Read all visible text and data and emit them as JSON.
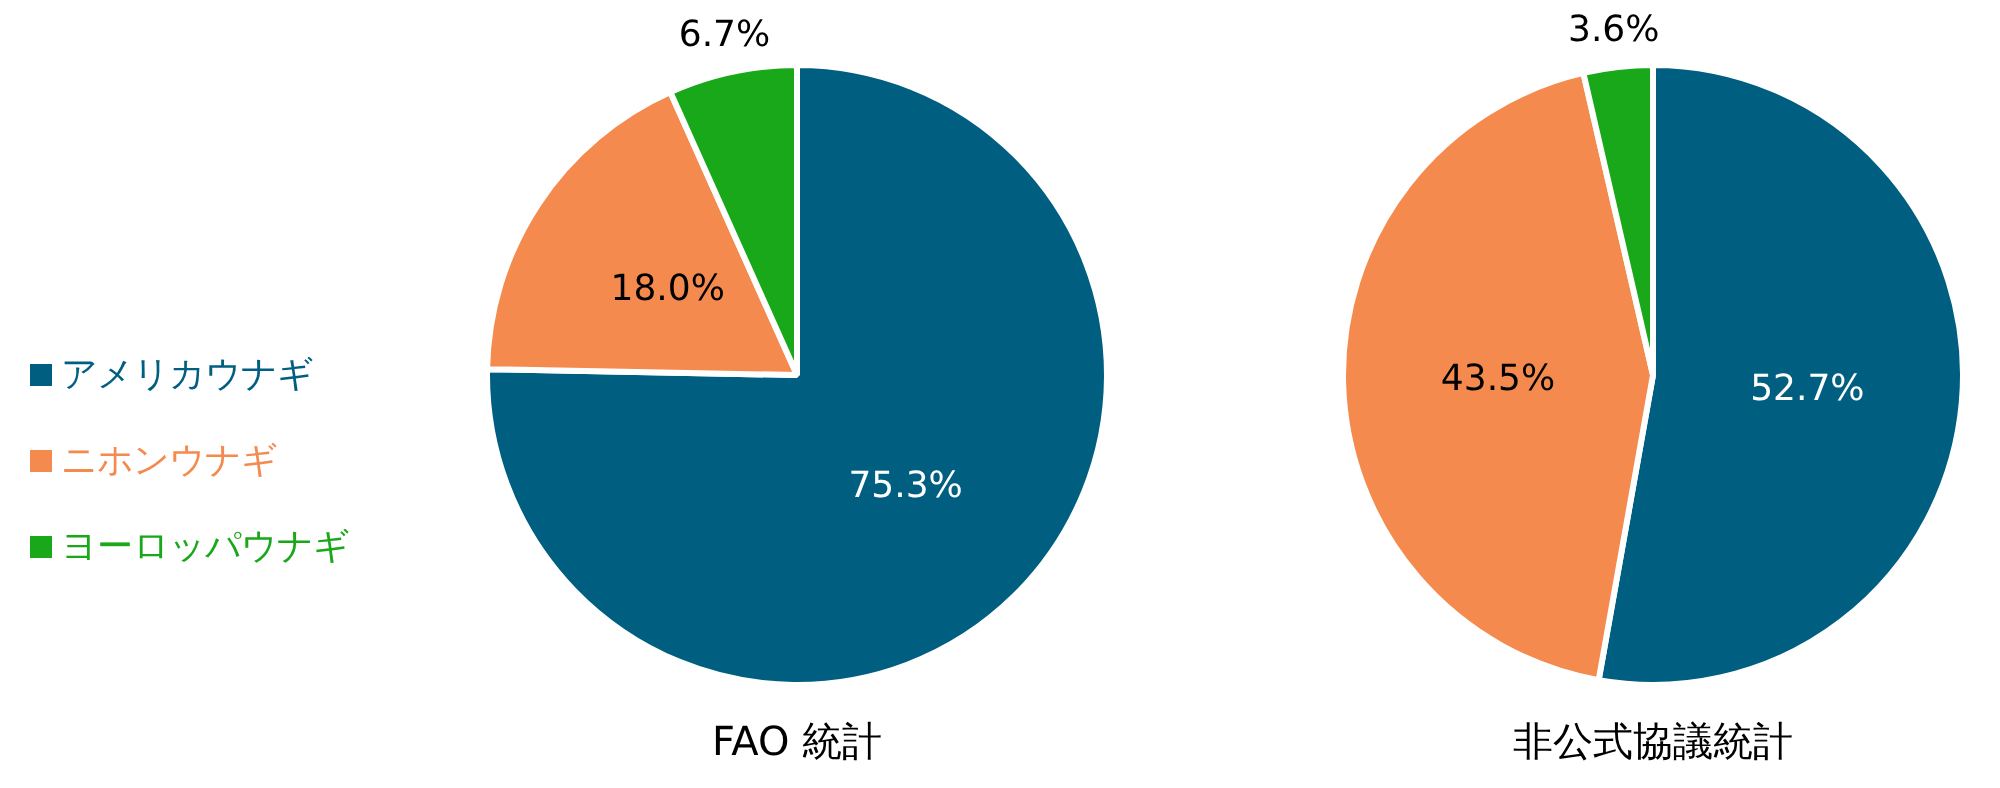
{
  "chart_data": [
    {
      "type": "pie",
      "title": "FAO 統計",
      "categories": [
        "アメリカウナギ",
        "ニホンウナギ",
        "ヨーロッパウナギ"
      ],
      "values": [
        75.3,
        18.0,
        6.7
      ],
      "colors": [
        "#005f80",
        "#f58a4f",
        "#19a819"
      ],
      "value_labels": [
        "75.3%",
        "18.0%",
        "6.7%"
      ],
      "legend": "left"
    },
    {
      "type": "pie",
      "title": "非公式協議統計",
      "categories": [
        null,
        null,
        null
      ],
      "values": [
        52.7,
        43.5,
        3.6
      ],
      "colors": [
        "#005f80",
        "#f58a4f",
        "#19a819"
      ],
      "value_labels": [
        "52.7%",
        "43.5%",
        "3.6%"
      ]
    }
  ]
}
